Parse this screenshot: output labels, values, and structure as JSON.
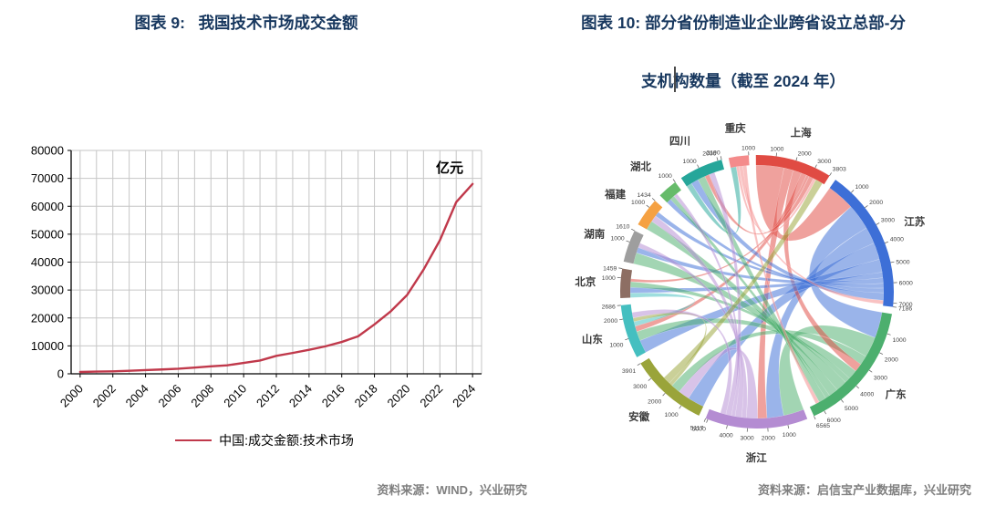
{
  "page": {
    "background": "#ffffff",
    "title_color": "#17375e",
    "source_color": "#7f7f7f"
  },
  "left_panel": {
    "title": "图表 9:   我国技术市场成交金额",
    "unit_label": "亿元",
    "legend_label": "中国:成交金额:技术市场",
    "source": "资料来源：WIND，兴业研究",
    "chart_data": {
      "type": "line",
      "series_name": "中国:成交金额:技术市场",
      "line_color": "#c0394b",
      "grid": true,
      "x": [
        2000,
        2001,
        2002,
        2003,
        2004,
        2005,
        2006,
        2007,
        2008,
        2009,
        2010,
        2011,
        2012,
        2013,
        2014,
        2015,
        2016,
        2017,
        2018,
        2019,
        2020,
        2021,
        2022,
        2023,
        2024
      ],
      "values": [
        651,
        783,
        884,
        1085,
        1334,
        1551,
        1818,
        2227,
        2665,
        3039,
        3907,
        4764,
        6437,
        7469,
        8577,
        9836,
        11407,
        13424,
        17697,
        22398,
        28252,
        37294,
        47791,
        61476,
        68000
      ],
      "ylim": [
        0,
        80000
      ],
      "yticks": [
        0,
        10000,
        20000,
        30000,
        40000,
        50000,
        60000,
        70000,
        80000
      ],
      "xticks": [
        2000,
        2002,
        2004,
        2006,
        2008,
        2010,
        2012,
        2014,
        2016,
        2018,
        2020,
        2022,
        2024
      ]
    }
  },
  "right_panel": {
    "title_line1": "图表 10: 部分省份制造业企业跨省设立总部-分",
    "title_line2": "支机构数量（截至 2024 年）",
    "source": "资料来源：启信宝产业数据库，兴业研究",
    "chart_data": {
      "type": "chord",
      "tick_step": 1000,
      "start_angle": -12,
      "provinces": [
        {
          "name": "重庆",
          "total": 1000,
          "color": "#f48b8b"
        },
        {
          "name": "上海",
          "total": 3803,
          "color": "#e04b43"
        },
        {
          "name": "江苏",
          "total": 7186,
          "color": "#3d6fd7"
        },
        {
          "name": "广东",
          "total": 6565,
          "color": "#4caf6e"
        },
        {
          "name": "浙江",
          "total": 5117,
          "color": "#b48cd2"
        },
        {
          "name": "安徽",
          "total": 3901,
          "color": "#9aa43a"
        },
        {
          "name": "山东",
          "total": 2686,
          "color": "#45bfc0"
        },
        {
          "name": "北京",
          "total": 1459,
          "color": "#8d6e63"
        },
        {
          "name": "湖南",
          "total": 1610,
          "color": "#9e9e9e"
        },
        {
          "name": "福建",
          "total": 1434,
          "color": "#f5a142"
        },
        {
          "name": "湖北",
          "total": 1000,
          "color": "#66bb6a"
        },
        {
          "name": "四川",
          "total": 2190,
          "color": "#26a69a"
        }
      ],
      "flow_format": "[source_index, target_index, approx_value]",
      "flows": [
        [
          1,
          2,
          1500
        ],
        [
          2,
          3,
          1400
        ],
        [
          3,
          4,
          1100
        ],
        [
          2,
          4,
          900
        ],
        [
          1,
          4,
          500
        ],
        [
          2,
          5,
          900
        ],
        [
          4,
          5,
          600
        ],
        [
          3,
          5,
          500
        ],
        [
          1,
          3,
          450
        ],
        [
          2,
          6,
          700
        ],
        [
          3,
          6,
          500
        ],
        [
          1,
          6,
          300
        ],
        [
          6,
          7,
          250
        ],
        [
          2,
          7,
          300
        ],
        [
          3,
          7,
          300
        ],
        [
          1,
          7,
          150
        ],
        [
          3,
          8,
          600
        ],
        [
          2,
          8,
          300
        ],
        [
          4,
          8,
          250
        ],
        [
          3,
          9,
          500
        ],
        [
          4,
          9,
          350
        ],
        [
          2,
          9,
          250
        ],
        [
          2,
          10,
          250
        ],
        [
          3,
          10,
          250
        ],
        [
          4,
          10,
          200
        ],
        [
          11,
          0,
          300
        ],
        [
          2,
          11,
          400
        ],
        [
          3,
          11,
          400
        ],
        [
          1,
          11,
          250
        ],
        [
          4,
          11,
          300
        ],
        [
          0,
          1,
          150
        ],
        [
          0,
          2,
          200
        ],
        [
          0,
          3,
          200
        ],
        [
          5,
          6,
          200
        ],
        [
          5,
          1,
          400
        ],
        [
          4,
          6,
          300
        ]
      ]
    }
  }
}
